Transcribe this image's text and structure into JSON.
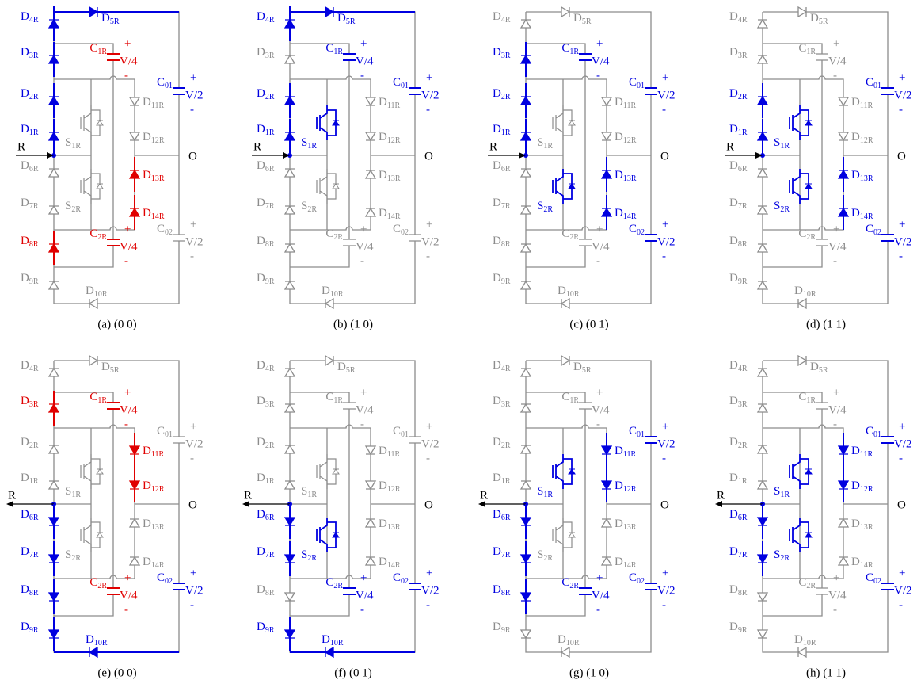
{
  "panels": [
    {
      "caption": "(a) (0 0)",
      "labels": {
        "d4": "D4R",
        "d5": "D5R",
        "d3": "D3R",
        "c1": "C1R",
        "d2": "D2R",
        "d1": "D1R",
        "d6": "D6R",
        "d7": "D7R",
        "d8": "D8R",
        "d9": "D9R",
        "d10": "D10R",
        "d11": "D11R",
        "d12": "D12R",
        "d13": "D13R",
        "d14": "D14R",
        "c2": "C2R",
        "c01": "C01",
        "c02": "C02",
        "s1": "S1R",
        "s2": "S2R",
        "r": "R",
        "o": "O",
        "v4": "V/4",
        "v2": "V/2",
        "plus": "+",
        "minus": "-"
      }
    },
    {
      "caption": "(b) (1 0)",
      "labels": {
        "d4": "D4R",
        "d5": "D5R",
        "d3": "D3R",
        "c1": "C1R",
        "d2": "D2R",
        "d1": "D1R",
        "d6": "D6R",
        "d7": "D7R",
        "d8": "D8R",
        "d9": "D9R",
        "d10": "D10R",
        "d11": "D11R",
        "d12": "D12R",
        "d13": "D13R",
        "d14": "D14R",
        "c2": "C2R",
        "c01": "C01",
        "c02": "C02",
        "s1": "S1R",
        "s2": "S2R",
        "r": "R",
        "o": "O",
        "v4": "V/4",
        "v2": "V/2",
        "plus": "+",
        "minus": "-"
      }
    },
    {
      "caption": "(c) (0 1)",
      "labels": {
        "d4": "D4R",
        "d5": "D5R",
        "d3": "D3R",
        "c1": "C1R",
        "d2": "D2R",
        "d1": "D1R",
        "d6": "D6R",
        "d7": "D7R",
        "d8": "D8R",
        "d9": "D9R",
        "d10": "D10R",
        "d11": "D11R",
        "d12": "D12R",
        "d13": "D13R",
        "d14": "D14R",
        "c2": "C2R",
        "c01": "C01",
        "c02": "C02",
        "s1": "S1R",
        "s2": "S2R",
        "r": "R",
        "o": "O",
        "v4": "V/4",
        "v2": "V/2",
        "plus": "+",
        "minus": "-"
      }
    },
    {
      "caption": "(d) (1 1)",
      "labels": {
        "d4": "D4R",
        "d5": "D5R",
        "d3": "D3R",
        "c1": "C1R",
        "d2": "D2R",
        "d1": "D1R",
        "d6": "D6R",
        "d7": "D7R",
        "d8": "D8R",
        "d9": "D9R",
        "d10": "D10R",
        "d11": "D11R",
        "d12": "D12R",
        "d13": "D13R",
        "d14": "D14R",
        "c2": "C2R",
        "c01": "C01",
        "c02": "C02",
        "s1": "S1R",
        "s2": "S2R",
        "r": "R",
        "o": "O",
        "v4": "V/4",
        "v2": "V/2",
        "plus": "+",
        "minus": "-"
      }
    },
    {
      "caption": "(e) (0 0)",
      "labels": {
        "d4": "D4R",
        "d5": "D5R",
        "d3": "D3R",
        "c1": "C1R",
        "d2": "D2R",
        "d1": "D1R",
        "d6": "D6R",
        "d7": "D7R",
        "d8": "D8R",
        "d9": "D9R",
        "d10": "D10R",
        "d11": "D11R",
        "d12": "D12R",
        "d13": "D13R",
        "d14": "D14R",
        "c2": "C2R",
        "c01": "C01",
        "c02": "C02",
        "s1": "S1R",
        "s2": "S2R",
        "r": "R",
        "o": "O",
        "v4": "V/4",
        "v2": "V/2",
        "plus": "+",
        "minus": "-"
      }
    },
    {
      "caption": "(f) (0 1)",
      "labels": {
        "d4": "D4R",
        "d5": "D5R",
        "d3": "D3R",
        "c1": "C1R",
        "d2": "D2R",
        "d1": "D1R",
        "d6": "D6R",
        "d7": "D7R",
        "d8": "D8R",
        "d9": "D9R",
        "d10": "D10R",
        "d11": "D11R",
        "d12": "D12R",
        "d13": "D13R",
        "d14": "D14R",
        "c2": "C2R",
        "c01": "C01",
        "c02": "C02",
        "s1": "S1R",
        "s2": "S2R",
        "r": "R",
        "o": "O",
        "v4": "V/4",
        "v2": "V/2",
        "plus": "+",
        "minus": "-"
      }
    },
    {
      "caption": "(g) (1 0)",
      "labels": {
        "d4": "D4R",
        "d5": "D5R",
        "d3": "D3R",
        "c1": "C1R",
        "d2": "D2R",
        "d1": "D1R",
        "d6": "D6R",
        "d7": "D7R",
        "d8": "D8R",
        "d9": "D9R",
        "d10": "D10R",
        "d11": "D11R",
        "d12": "D12R",
        "d13": "D13R",
        "d14": "D14R",
        "c2": "C2R",
        "c01": "C01",
        "c02": "C02",
        "s1": "S1R",
        "s2": "S2R",
        "r": "R",
        "o": "O",
        "v4": "V/4",
        "v2": "V/2",
        "plus": "+",
        "minus": "-"
      }
    },
    {
      "caption": "(h) (1 1)",
      "labels": {
        "d4": "D4R",
        "d5": "D5R",
        "d3": "D3R",
        "c1": "C1R",
        "d2": "D2R",
        "d1": "D1R",
        "d6": "D6R",
        "d7": "D7R",
        "d8": "D8R",
        "d9": "D9R",
        "d10": "D10R",
        "d11": "D11R",
        "d12": "D12R",
        "d13": "D13R",
        "d14": "D14R",
        "c2": "C2R",
        "c01": "C01",
        "c02": "C02",
        "s1": "S1R",
        "s2": "S2R",
        "r": "R",
        "o": "O",
        "v4": "V/4",
        "v2": "V/2",
        "plus": "+",
        "minus": "-"
      }
    }
  ]
}
